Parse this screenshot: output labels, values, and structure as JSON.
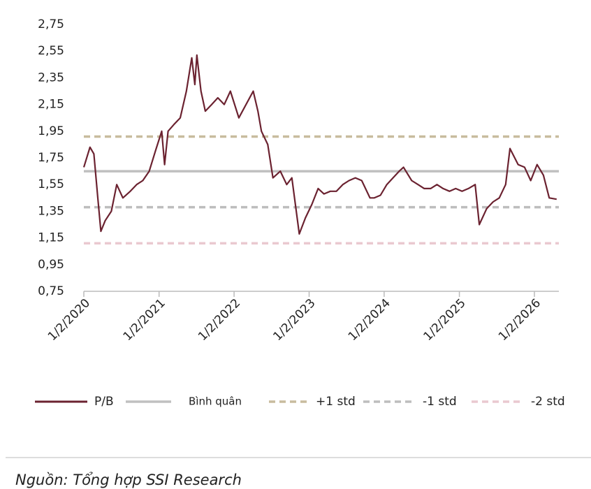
{
  "chart_data": {
    "type": "line",
    "x": [
      "2020-01-02",
      "2020-02-01",
      "2020-02-20",
      "2020-03-10",
      "2020-03-25",
      "2020-04-15",
      "2020-05-15",
      "2020-06-10",
      "2020-07-10",
      "2020-08-15",
      "2020-09-15",
      "2020-10-15",
      "2020-11-15",
      "2020-12-15",
      "2021-01-15",
      "2021-01-29",
      "2021-02-15",
      "2021-03-15",
      "2021-04-15",
      "2021-05-15",
      "2021-06-10",
      "2021-06-25",
      "2021-07-05",
      "2021-07-25",
      "2021-08-15",
      "2021-09-15",
      "2021-10-15",
      "2021-11-15",
      "2021-12-15",
      "2022-01-25",
      "2022-04-05",
      "2022-04-28",
      "2022-05-15",
      "2022-06-15",
      "2022-07-10",
      "2022-08-15",
      "2022-09-15",
      "2022-10-10",
      "2022-11-15",
      "2022-12-15",
      "2023-01-15",
      "2023-02-15",
      "2023-03-15",
      "2023-04-15",
      "2023-05-15",
      "2023-06-15",
      "2023-07-15",
      "2023-08-15",
      "2023-09-15",
      "2023-10-25",
      "2023-11-15",
      "2023-12-15",
      "2024-01-15",
      "2024-03-15",
      "2024-04-05",
      "2024-05-15",
      "2024-06-15",
      "2024-07-15",
      "2024-08-15",
      "2024-09-15",
      "2024-10-15",
      "2024-11-15",
      "2024-12-15",
      "2025-01-15",
      "2025-02-15",
      "2025-03-20",
      "2025-04-09",
      "2025-05-15",
      "2025-06-15",
      "2025-07-15",
      "2025-08-15",
      "2025-09-05",
      "2025-10-15",
      "2025-11-15",
      "2025-12-15",
      "2026-01-15",
      "2026-02-15",
      "2026-03-15",
      "2026-04-20"
    ],
    "series": [
      {
        "name": "P/B",
        "color": "#6b2230",
        "values": [
          1.68,
          1.83,
          1.78,
          1.45,
          1.2,
          1.28,
          1.35,
          1.55,
          1.45,
          1.5,
          1.55,
          1.58,
          1.65,
          1.8,
          1.95,
          1.7,
          1.95,
          2.0,
          2.05,
          2.25,
          2.5,
          2.3,
          2.52,
          2.25,
          2.1,
          2.15,
          2.2,
          2.15,
          2.25,
          2.05,
          2.25,
          2.1,
          1.95,
          1.85,
          1.6,
          1.65,
          1.55,
          1.6,
          1.18,
          1.3,
          1.4,
          1.52,
          1.48,
          1.5,
          1.5,
          1.55,
          1.58,
          1.6,
          1.58,
          1.45,
          1.45,
          1.47,
          1.55,
          1.65,
          1.68,
          1.58,
          1.55,
          1.52,
          1.52,
          1.55,
          1.52,
          1.5,
          1.52,
          1.5,
          1.52,
          1.55,
          1.25,
          1.37,
          1.42,
          1.45,
          1.55,
          1.82,
          1.7,
          1.68,
          1.58,
          1.7,
          1.62,
          1.45,
          1.44
        ]
      }
    ],
    "reference_lines": [
      {
        "name": "Bình quân",
        "value": 1.65,
        "color": "#c0c0c0",
        "dashed": false
      },
      {
        "name": "+1 std",
        "value": 1.91,
        "color": "#c8bc9e",
        "dashed": true
      },
      {
        "name": "-1 std",
        "value": 1.38,
        "color": "#bdbdbd",
        "dashed": true
      },
      {
        "name": "-2 std",
        "value": 1.11,
        "color": "#eac9d0",
        "dashed": true
      }
    ],
    "xlim": [
      "2020-01-02",
      "2026-05-01"
    ],
    "xticks": [
      {
        "value": "2020-01-02",
        "label": "1/2/2020"
      },
      {
        "value": "2021-01-02",
        "label": "1/2/2021"
      },
      {
        "value": "2022-01-02",
        "label": "1/2/2022"
      },
      {
        "value": "2023-01-02",
        "label": "1/2/2023"
      },
      {
        "value": "2024-01-02",
        "label": "1/2/2024"
      },
      {
        "value": "2025-01-02",
        "label": "1/2/2025"
      },
      {
        "value": "2026-01-02",
        "label": "1/2/2026"
      }
    ],
    "ylim": [
      0.75,
      2.75
    ],
    "yticks": [
      {
        "value": 0.75,
        "label": "0,75"
      },
      {
        "value": 0.95,
        "label": "0,95"
      },
      {
        "value": 1.15,
        "label": "1,15"
      },
      {
        "value": 1.35,
        "label": "1,35"
      },
      {
        "value": 1.55,
        "label": "1,55"
      },
      {
        "value": 1.75,
        "label": "1,75"
      },
      {
        "value": 1.95,
        "label": "1,95"
      },
      {
        "value": 2.15,
        "label": "2,15"
      },
      {
        "value": 2.35,
        "label": "2,35"
      },
      {
        "value": 2.55,
        "label": "2,55"
      },
      {
        "value": 2.75,
        "label": "2,75"
      }
    ],
    "grid": false,
    "source": "Nguồn: Tổng hợp SSI Research"
  }
}
